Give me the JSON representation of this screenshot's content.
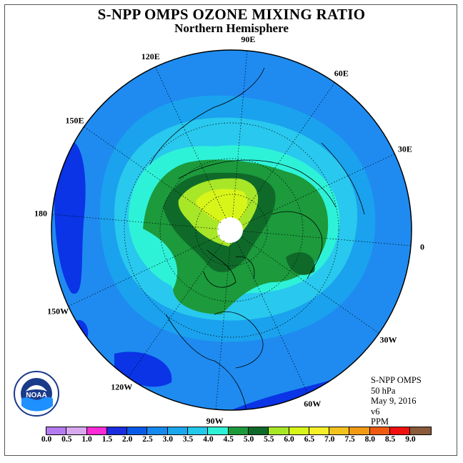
{
  "header": {
    "title": "S-NPP OMPS OZONE MIXING RATIO",
    "subtitle": "Northern Hemisphere"
  },
  "map": {
    "projection": "north polar stereographic",
    "longitude_labels": [
      {
        "text": "90E",
        "lon": 90
      },
      {
        "text": "60E",
        "lon": 60
      },
      {
        "text": "30E",
        "lon": 30
      },
      {
        "text": "0",
        "lon": 0
      },
      {
        "text": "30W",
        "lon": -30
      },
      {
        "text": "60W",
        "lon": -60
      },
      {
        "text": "90W",
        "lon": -90
      },
      {
        "text": "120W",
        "lon": -120
      },
      {
        "text": "150W",
        "lon": -150
      },
      {
        "text": "180",
        "lon": 180
      },
      {
        "text": "150E",
        "lon": 150
      },
      {
        "text": "120E",
        "lon": 120
      }
    ],
    "colors": {
      "ocean_outer": "#1f8bf0",
      "deep_blue": "#0a34e6",
      "mid_blue": "#1aa2ee",
      "light_blue": "#29c8ee",
      "cyan": "#2ef2d8",
      "green": "#1c9a3c",
      "dark_green": "#0f6a2a",
      "yellow_green": "#a8e628",
      "lime": "#d8f51a",
      "no_data": "#ffffff"
    }
  },
  "info": {
    "instrument": "S-NPP OMPS",
    "level": "50 hPa",
    "date": "May 9, 2016",
    "version": "v6",
    "units": "PPM"
  },
  "logo": {
    "text": "NOAA"
  },
  "colorbar": {
    "ticks": [
      "0.0",
      "0.5",
      "1.0",
      "1.5",
      "2.0",
      "2.5",
      "3.0",
      "3.5",
      "4.0",
      "4.5",
      "5.0",
      "5.5",
      "6.0",
      "6.5",
      "7.0",
      "7.5",
      "8.0",
      "8.5",
      "9.0"
    ],
    "colors": [
      "#b57cf2",
      "#d9a9f0",
      "#ff2bd6",
      "#1a2ee0",
      "#0a5ae8",
      "#1589ee",
      "#1aa8ee",
      "#23c9ea",
      "#2ef2d8",
      "#1c9a3c",
      "#0f6a2a",
      "#a8e628",
      "#d8f51a",
      "#f5f02a",
      "#f2c21e",
      "#f29a14",
      "#f05a10",
      "#f01010",
      "#8a5a3a"
    ]
  }
}
